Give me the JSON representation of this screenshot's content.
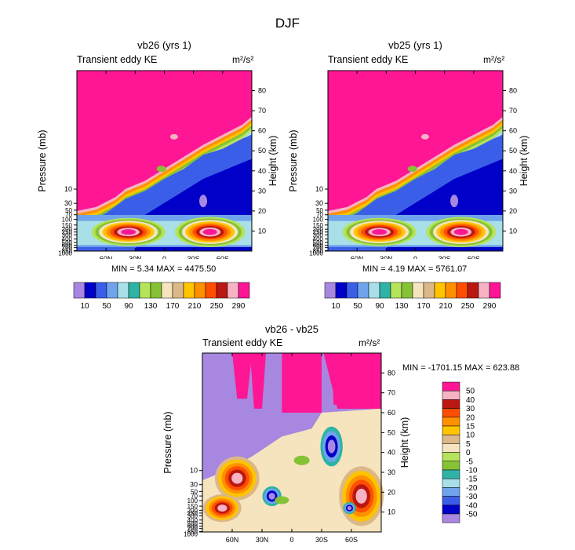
{
  "main_title": "DJF",
  "colors": {
    "pink": "#fe1694",
    "sequential": [
      "#a787e0",
      "#0000c8",
      "#3b5ee8",
      "#6fa4ec",
      "#a8dfe8",
      "#2eb3a6",
      "#b5e35a",
      "#86c236",
      "#f5e4bd",
      "#dcb787",
      "#fec400",
      "#ff9000",
      "#ff4e00",
      "#bb1712",
      "#f7b3c3",
      "#fe1694"
    ],
    "diverging": [
      "#a787e0",
      "#0000c8",
      "#3b5ee8",
      "#6fa4ec",
      "#a8dfe8",
      "#2eb3a6",
      "#86c236",
      "#b5e35a",
      "#f5e4bd",
      "#dcb787",
      "#fec400",
      "#ff9000",
      "#ff4e00",
      "#bb1712",
      "#f7b3c3",
      "#fe1694"
    ]
  },
  "chart_data": [
    {
      "type": "contour",
      "title": "vb26 (yrs 1)",
      "left_label": "Transient eddy KE",
      "units": "m²/s²",
      "ylabel": "Pressure (mb)",
      "y2label": "Height (km)",
      "xlim": [
        -90,
        90
      ],
      "xticks": [
        {
          "v": -60,
          "label": "60N"
        },
        {
          "v": -30,
          "label": "30N"
        },
        {
          "v": 0,
          "label": "0"
        },
        {
          "v": 30,
          "label": "30S"
        },
        {
          "v": 60,
          "label": "60S"
        }
      ],
      "height_range_km": [
        0,
        90
      ],
      "height_ticks": [
        10,
        20,
        30,
        40,
        50,
        60,
        70,
        80
      ],
      "pressure_ticks": [
        "10",
        "30",
        "50",
        "70",
        "100",
        "150",
        "200",
        "250",
        "300",
        "400",
        "500",
        "600",
        "700",
        "850",
        "1000"
      ],
      "pressure_heights_km": [
        30.9,
        23.8,
        20.4,
        18.1,
        15.8,
        13.0,
        10.9,
        9.5,
        8.1,
        6.0,
        4.3,
        2.9,
        1.7,
        0.2,
        -1.0
      ],
      "min_label": "MIN =   5.34  MAX = 4475.50",
      "min": 5.34,
      "max": 4475.5,
      "colorbar_labels": [
        "10",
        "50",
        "90",
        "130",
        "170",
        "210",
        "250",
        "290"
      ],
      "colorbar_levels": [
        10,
        30,
        50,
        70,
        90,
        110,
        130,
        150,
        170,
        190,
        210,
        230,
        250,
        270,
        290
      ]
    },
    {
      "type": "contour",
      "title": "vb25 (yrs 1)",
      "left_label": "Transient eddy KE",
      "units": "m²/s²",
      "ylabel": "Pressure (mb)",
      "y2label": "Height (km)",
      "xlim": [
        -90,
        90
      ],
      "xticks": [
        {
          "v": -60,
          "label": "60N"
        },
        {
          "v": -30,
          "label": "30N"
        },
        {
          "v": 0,
          "label": "0"
        },
        {
          "v": 30,
          "label": "30S"
        },
        {
          "v": 60,
          "label": "60S"
        }
      ],
      "height_range_km": [
        0,
        90
      ],
      "height_ticks": [
        10,
        20,
        30,
        40,
        50,
        60,
        70,
        80
      ],
      "pressure_ticks": [
        "10",
        "30",
        "50",
        "70",
        "100",
        "150",
        "200",
        "250",
        "300",
        "400",
        "500",
        "600",
        "700",
        "850",
        "1000"
      ],
      "pressure_heights_km": [
        30.9,
        23.8,
        20.4,
        18.1,
        15.8,
        13.0,
        10.9,
        9.5,
        8.1,
        6.0,
        4.3,
        2.9,
        1.7,
        0.2,
        -1.0
      ],
      "min_label": "MIN =   4.19  MAX = 5761.07",
      "min": 4.19,
      "max": 5761.07,
      "colorbar_labels": [
        "10",
        "50",
        "90",
        "130",
        "170",
        "210",
        "250",
        "290"
      ],
      "colorbar_levels": [
        10,
        30,
        50,
        70,
        90,
        110,
        130,
        150,
        170,
        190,
        210,
        230,
        250,
        270,
        290
      ]
    },
    {
      "type": "contour",
      "title": "vb26 - vb25",
      "left_label": "Transient eddy KE",
      "units": "m²/s²",
      "ylabel": "Pressure (mb)",
      "y2label": "Height (km)",
      "xlim": [
        -90,
        90
      ],
      "xticks": [
        {
          "v": -60,
          "label": "60N"
        },
        {
          "v": -30,
          "label": "30N"
        },
        {
          "v": 0,
          "label": "0"
        },
        {
          "v": 30,
          "label": "30S"
        },
        {
          "v": 60,
          "label": "60S"
        }
      ],
      "height_range_km": [
        0,
        90
      ],
      "height_ticks": [
        10,
        20,
        30,
        40,
        50,
        60,
        70,
        80
      ],
      "pressure_ticks": [
        "10",
        "30",
        "50",
        "70",
        "100",
        "150",
        "200",
        "250",
        "300",
        "400",
        "500",
        "600",
        "700",
        "850",
        "1000"
      ],
      "pressure_heights_km": [
        30.9,
        23.8,
        20.4,
        18.1,
        15.8,
        13.0,
        10.9,
        9.5,
        8.1,
        6.0,
        4.3,
        2.9,
        1.7,
        0.2,
        -1.0
      ],
      "min_label": "MIN = -1701.15  MAX = 623.88",
      "min": -1701.15,
      "max": 623.88,
      "colorbar_labels": [
        "50",
        "40",
        "30",
        "20",
        "15",
        "10",
        "5",
        "0",
        "-5",
        "-10",
        "-15",
        "-20",
        "-30",
        "-40",
        "-50"
      ],
      "colorbar_levels": [
        50,
        40,
        30,
        20,
        15,
        10,
        5,
        0,
        -5,
        -10,
        -15,
        -20,
        -30,
        -40,
        -50
      ]
    }
  ]
}
